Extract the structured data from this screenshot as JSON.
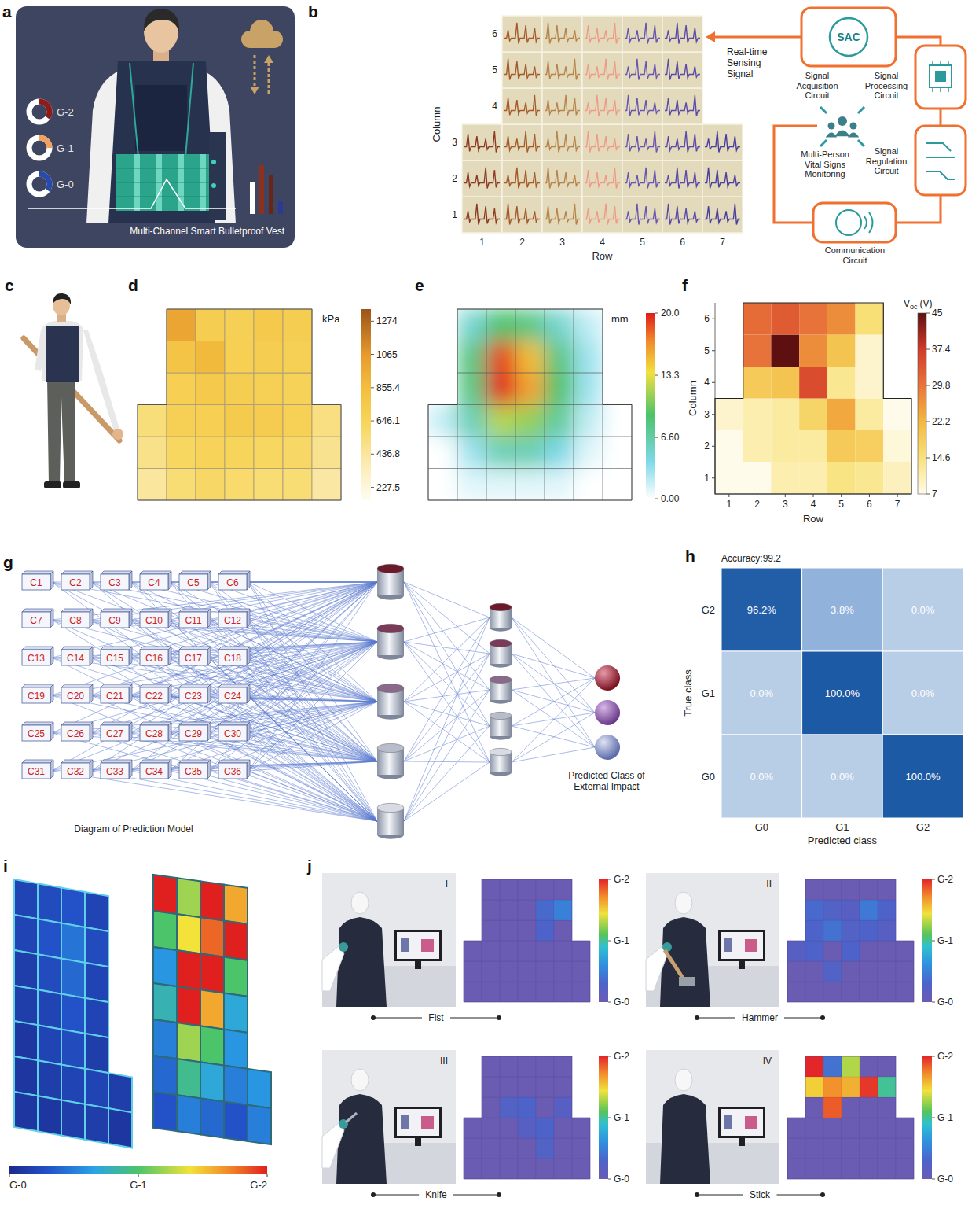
{
  "figure": {
    "a": {
      "letter": "a",
      "legend": [
        "G-2",
        "G-1",
        "G-0"
      ],
      "caption": "Multi-Channel Smart Bulletproof Vest"
    },
    "b": {
      "letter": "b",
      "x_label": "Row",
      "y_label": "Column",
      "xticks": [
        1,
        2,
        3,
        4,
        5,
        6,
        7
      ],
      "yticks": [
        1,
        2,
        3,
        4,
        5,
        6
      ],
      "signal_label": "Real-time Sensing Signal",
      "hub": "SAC",
      "acquisition": "Signal Acquisition Circuit",
      "processing": "Signal Processing Circuit",
      "regulation": "Signal Regulation Circuit",
      "communication": "Communication Circuit",
      "monitoring": "Multi-Person Vital Signs Monitoring"
    },
    "c": {
      "letter": "c"
    },
    "g": {
      "letter": "g",
      "inputs": [
        "C1",
        "C2",
        "C3",
        "C4",
        "C5",
        "C6",
        "C7",
        "C8",
        "C9",
        "C10",
        "C11",
        "C12",
        "C13",
        "C14",
        "C15",
        "C16",
        "C17",
        "C18",
        "C19",
        "C20",
        "C21",
        "C22",
        "C23",
        "C24",
        "C25",
        "C26",
        "C27",
        "C28",
        "C29",
        "C30",
        "C31",
        "C32",
        "C33",
        "C34",
        "C35",
        "C36"
      ],
      "caption": "Diagram of Prediction Model",
      "output_label": "Predicted Class of External Impact"
    },
    "i": {
      "letter": "i",
      "left_cells": [
        [
          0.2,
          0.25,
          0.3,
          0.2,
          null
        ],
        [
          0.2,
          0.3,
          0.45,
          0.25,
          null
        ],
        [
          0.15,
          0.25,
          0.4,
          0.2,
          null
        ],
        [
          0.15,
          0.2,
          0.3,
          0.2,
          null
        ],
        [
          0.1,
          0.2,
          0.25,
          0.15,
          null
        ],
        [
          0.1,
          0.15,
          0.2,
          0.2,
          0.15
        ],
        [
          0.1,
          0.1,
          0.15,
          0.15,
          0.1
        ]
      ],
      "right_cells": [
        [
          2.0,
          1.2,
          2.0,
          1.6,
          null
        ],
        [
          1.0,
          1.4,
          1.8,
          2.0,
          null
        ],
        [
          0.6,
          2.0,
          2.0,
          1.0,
          null
        ],
        [
          0.8,
          2.0,
          1.6,
          0.7,
          null
        ],
        [
          0.5,
          1.2,
          1.0,
          0.6,
          null
        ],
        [
          0.4,
          0.9,
          0.7,
          0.5,
          0.6
        ],
        [
          0.3,
          0.5,
          0.4,
          0.3,
          0.5
        ]
      ],
      "colorbar": {
        "range": [
          0,
          2
        ],
        "ticks": [
          {
            "value": 0,
            "label": "G-0"
          },
          {
            "value": 1,
            "label": "G-1"
          },
          {
            "value": 2,
            "label": "G-2"
          }
        ]
      }
    }
  },
  "chart_data": [
    {
      "panel": "d",
      "type": "heatmap",
      "cells": [
        [
          440,
          560,
          600,
          580,
          560,
          560,
          420
        ],
        [
          500,
          620,
          650,
          640,
          620,
          600,
          480
        ],
        [
          540,
          690,
          700,
          740,
          730,
          680,
          520
        ],
        [
          null,
          700,
          760,
          720,
          690,
          660,
          null
        ],
        [
          null,
          800,
          880,
          700,
          720,
          690,
          null
        ],
        [
          null,
          1000,
          720,
          690,
          760,
          720,
          null
        ]
      ],
      "colorbar": {
        "label": "kPa",
        "range": [
          146,
          1350
        ],
        "ticks": [
          227.5,
          436.8,
          646.1,
          855.4,
          1065,
          1274
        ]
      }
    },
    {
      "panel": "e",
      "type": "contour",
      "cells": [
        [
          0,
          1,
          1,
          1,
          1,
          0,
          0
        ],
        [
          0,
          3,
          6,
          6,
          4,
          1,
          0
        ],
        [
          2,
          6,
          12,
          11,
          7,
          2,
          0
        ],
        [
          null,
          8,
          20,
          16,
          9,
          3,
          null
        ],
        [
          null,
          8,
          19,
          15,
          8,
          3,
          null
        ],
        [
          null,
          5,
          9,
          8,
          5,
          2,
          null
        ]
      ],
      "colorbar": {
        "label": "mm",
        "range": [
          0,
          20
        ],
        "ticks": [
          {
            "value": 0,
            "label": "0.00"
          },
          {
            "value": 6.6,
            "label": "6.60"
          },
          13.3,
          {
            "value": 20,
            "label": "20.0"
          }
        ]
      }
    },
    {
      "panel": "f",
      "type": "heatmap",
      "x_label": "Row",
      "y_label": "Column",
      "xticks": [
        1,
        2,
        3,
        4,
        5,
        6,
        7
      ],
      "yticks": [
        1,
        2,
        3,
        4,
        5,
        6
      ],
      "xlim": [
        0.5,
        7.5
      ],
      "ylim": [
        0.5,
        6.5
      ],
      "cells": [
        [
          7,
          7,
          11,
          11,
          14,
          13,
          10
        ],
        [
          7,
          11,
          12,
          12,
          19,
          18,
          8
        ],
        [
          9,
          11,
          12,
          17,
          24,
          12,
          7
        ],
        [
          null,
          19,
          20,
          35,
          13,
          9,
          null
        ],
        [
          null,
          30,
          45,
          27,
          20,
          9,
          null
        ],
        [
          null,
          31,
          33,
          30,
          27,
          15,
          null
        ]
      ],
      "colorbar": {
        "label": {
          "main": "V",
          "sub": "oc",
          "unit": "(V)"
        },
        "range": [
          7,
          45
        ],
        "ticks": [
          7,
          14.6,
          22.2,
          29.8,
          37.4,
          45
        ]
      }
    },
    {
      "panel": "h",
      "type": "confusion",
      "title": "Accuracy:99.2",
      "x_label": "Predicted class",
      "y_label": "True class",
      "categories": [
        "G0",
        "G1",
        "G2"
      ],
      "rows": [
        "G2",
        "G1",
        "G0"
      ],
      "values": [
        [
          96.2,
          3.8,
          0
        ],
        [
          0,
          100,
          0
        ],
        [
          0,
          0,
          100
        ]
      ],
      "value_labels": [
        [
          "96.2%",
          "3.8%",
          "0.0%"
        ],
        [
          "0.0%",
          "100.0%",
          "0.0%"
        ],
        [
          "0.0%",
          "0.0%",
          "100.0%"
        ]
      ],
      "data_labels": true
    },
    {
      "panel": "j",
      "type": "heatmap",
      "colorbar": {
        "range": [
          0,
          2
        ],
        "ticks": [
          {
            "value": 0,
            "label": "G-0"
          },
          {
            "value": 1,
            "label": "G-1"
          },
          {
            "value": 2,
            "label": "G-2"
          }
        ]
      },
      "scenes": [
        {
          "numeral": "I",
          "caption": "Fist",
          "cells": [
            [
              0,
              0,
              0,
              0,
              0,
              0,
              0
            ],
            [
              0,
              0,
              0,
              0,
              0,
              0,
              0
            ],
            [
              0,
              0,
              0,
              0,
              0,
              0,
              0
            ],
            [
              null,
              0,
              0,
              0,
              0.3,
              0,
              null
            ],
            [
              null,
              0,
              0,
              0,
              0.35,
              0.5,
              null
            ],
            [
              null,
              0,
              0,
              0,
              0,
              0,
              null
            ]
          ]
        },
        {
          "numeral": "II",
          "caption": "Hammer",
          "cells": [
            [
              0,
              0,
              0,
              0,
              0,
              0,
              0
            ],
            [
              0,
              0,
              0.25,
              0,
              0,
              0,
              0
            ],
            [
              0.2,
              0.3,
              0,
              0.3,
              0,
              0,
              0
            ],
            [
              null,
              0.3,
              0.4,
              0.25,
              0.3,
              0.2,
              null
            ],
            [
              null,
              0.35,
              0.25,
              0.2,
              0.45,
              0.3,
              null
            ],
            [
              null,
              0,
              0,
              0,
              0,
              0,
              null
            ]
          ]
        },
        {
          "numeral": "III",
          "caption": "Knife",
          "cells": [
            [
              0,
              0,
              0,
              0,
              0,
              0,
              0
            ],
            [
              0,
              0,
              0,
              0,
              0.25,
              0,
              0
            ],
            [
              0,
              0,
              0,
              0.2,
              0.3,
              0,
              0
            ],
            [
              null,
              0,
              0.25,
              0.3,
              0,
              0.2,
              null
            ],
            [
              null,
              0,
              0,
              0,
              0,
              0,
              null
            ],
            [
              null,
              0,
              0,
              0,
              0,
              0,
              null
            ]
          ]
        },
        {
          "numeral": "IV",
          "caption": "Stick",
          "cells": [
            [
              0,
              0,
              0,
              0,
              0,
              0,
              0
            ],
            [
              0,
              0,
              0,
              0,
              0,
              0,
              0
            ],
            [
              0,
              0,
              0,
              0,
              0,
              0,
              0
            ],
            [
              null,
              0,
              1.85,
              0,
              0,
              0,
              null
            ],
            [
              null,
              1.5,
              1.7,
              1.6,
              1.95,
              1.0,
              null
            ],
            [
              null,
              2.0,
              0.4,
              1.3,
              0,
              0,
              null
            ]
          ]
        }
      ]
    }
  ]
}
